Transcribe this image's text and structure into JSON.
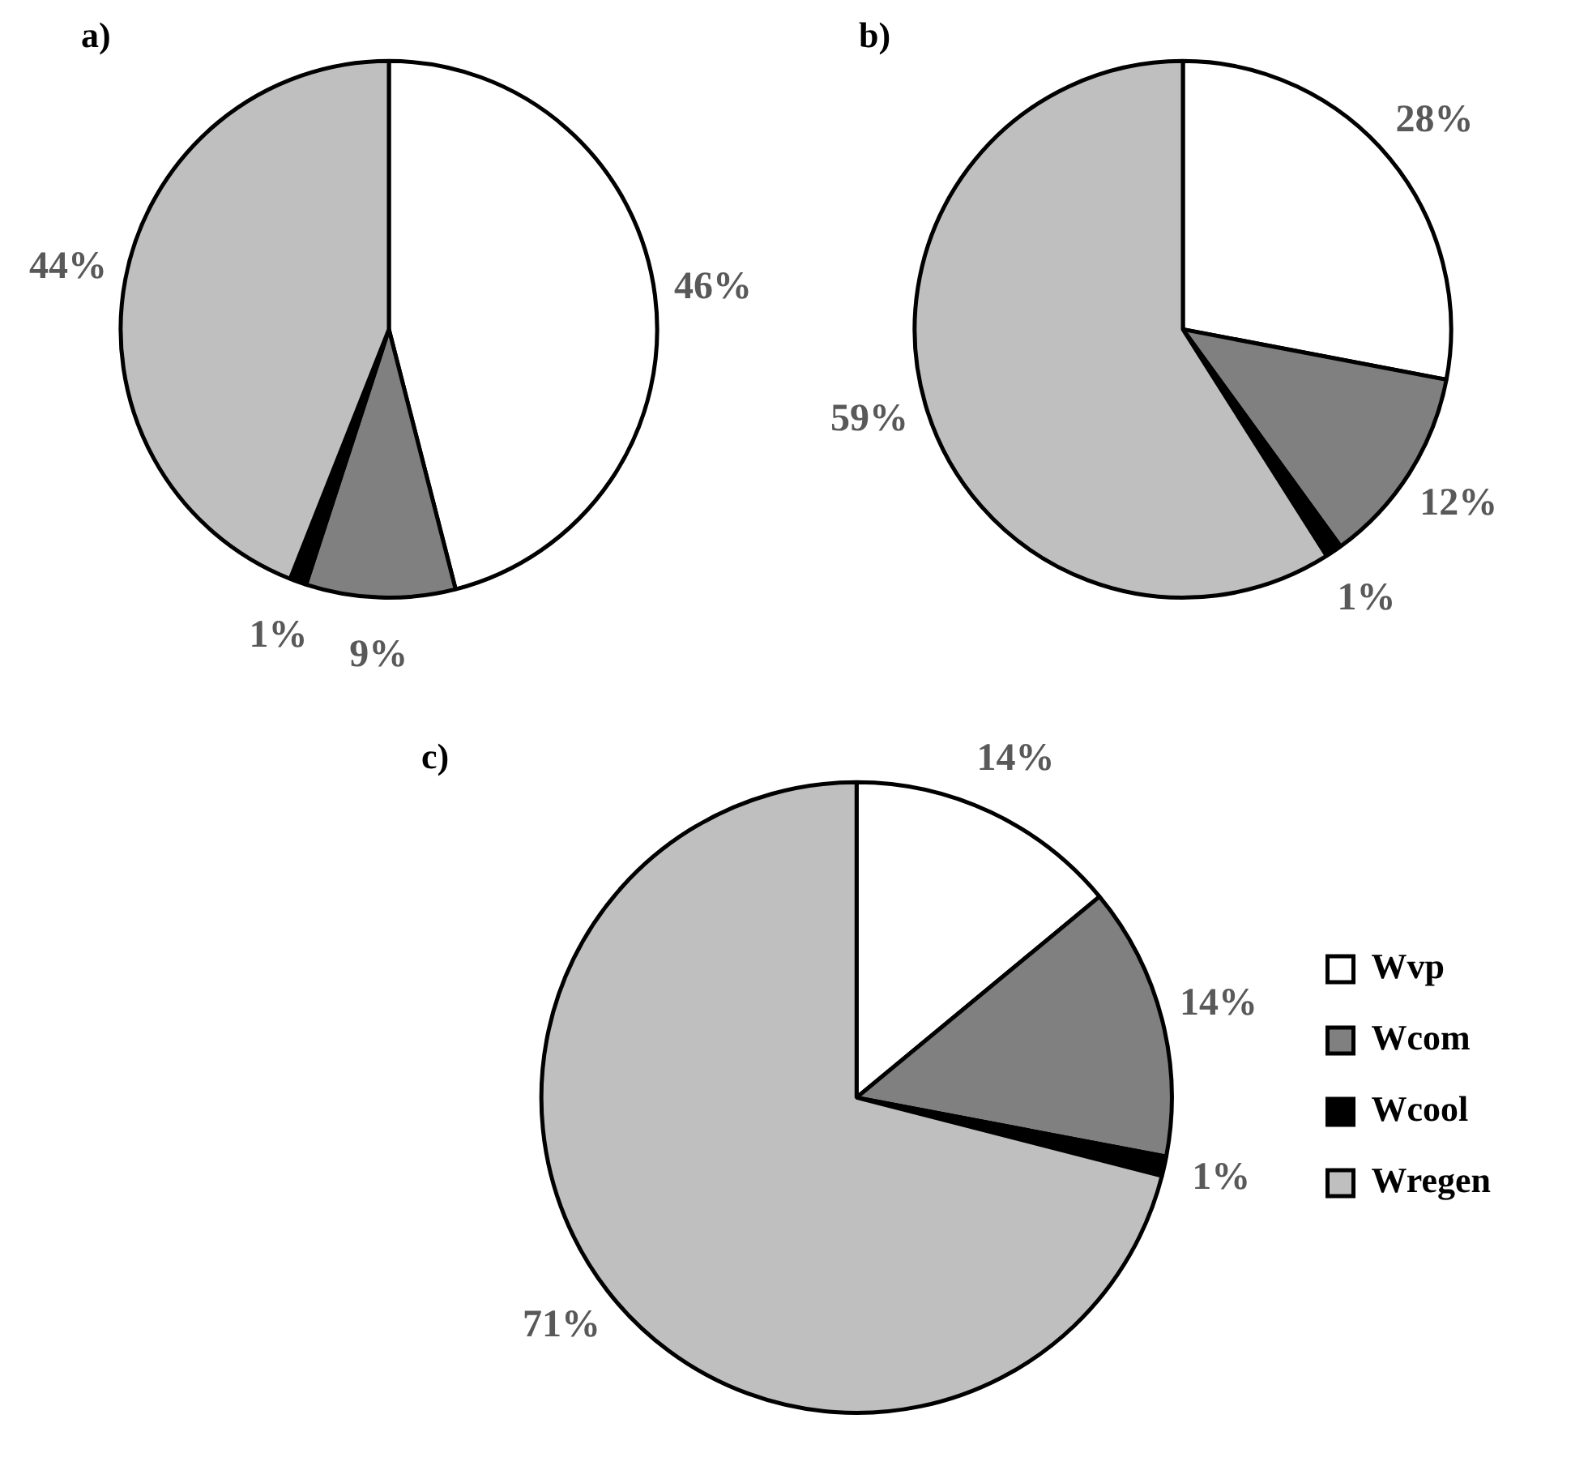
{
  "chart_data": [
    {
      "type": "pie",
      "title": "a)",
      "categories": [
        null,
        null,
        null,
        null
      ],
      "values": [
        46,
        9,
        1,
        44
      ],
      "colors": [
        "#ffffff",
        "#808080",
        "#000000",
        "#bfbfbf"
      ],
      "value_labels": [
        "46%",
        "9%",
        "1%",
        "44%"
      ]
    },
    {
      "type": "pie",
      "title": "b)",
      "categories": [
        null,
        null,
        null,
        null
      ],
      "values": [
        28,
        12,
        1,
        59
      ],
      "colors": [
        "#ffffff",
        "#808080",
        "#000000",
        "#bfbfbf"
      ],
      "value_labels": [
        "28%",
        "12%",
        "1%",
        "59%"
      ]
    },
    {
      "type": "pie",
      "title": "c)",
      "categories": [
        "Wvp",
        "Wcom",
        "Wcool",
        "Wregen"
      ],
      "values": [
        14,
        14,
        1,
        71
      ],
      "colors": [
        "#ffffff",
        "#808080",
        "#000000",
        "#bfbfbf"
      ],
      "value_labels": [
        "14%",
        "14%",
        "1%",
        "71%"
      ],
      "legend": "right"
    }
  ]
}
